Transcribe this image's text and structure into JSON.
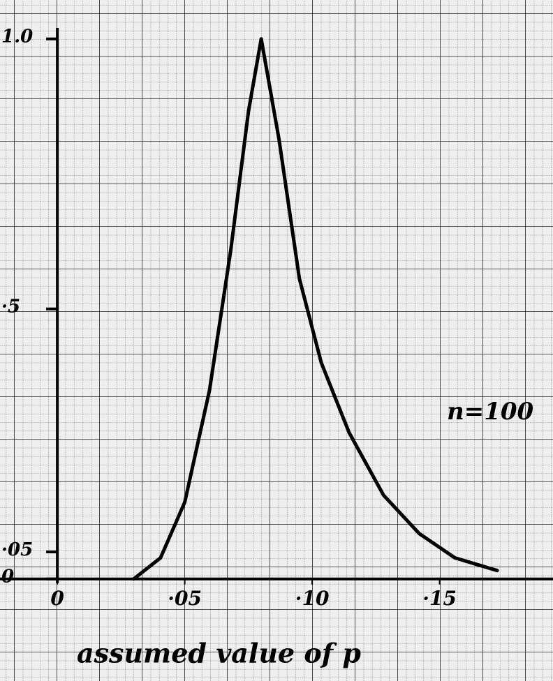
{
  "chart_data": {
    "type": "line",
    "xlabel": "assumed value of p",
    "annotation": "n=100",
    "x": [
      0.03,
      0.0405,
      0.05,
      0.0597,
      0.068,
      0.075,
      0.08,
      0.087,
      0.095,
      0.1036,
      0.1145,
      0.128,
      0.142,
      0.156,
      0.1726
    ],
    "series": [
      {
        "color": "#000000",
        "values": [
          0,
          0.039,
          0.142,
          0.349,
          0.607,
          0.866,
          1.0,
          0.814,
          0.556,
          0.4,
          0.271,
          0.155,
          0.084,
          0.039,
          0.0155
        ]
      }
    ],
    "xlim": [
      -0.0225,
      0.1945
    ],
    "ylim": [
      -0.189,
      1.072
    ],
    "xticks": [
      0,
      {
        "value": 0.05,
        "label": "·05"
      },
      {
        "value": 0.1,
        "label": "·10"
      },
      {
        "value": 0.15,
        "label": "·15"
      }
    ],
    "yticks": [
      0,
      {
        "value": 0.05,
        "label": "·05"
      },
      {
        "value": 0.5,
        "label": "·5"
      },
      {
        "value": 1,
        "label": "1.0"
      }
    ]
  }
}
